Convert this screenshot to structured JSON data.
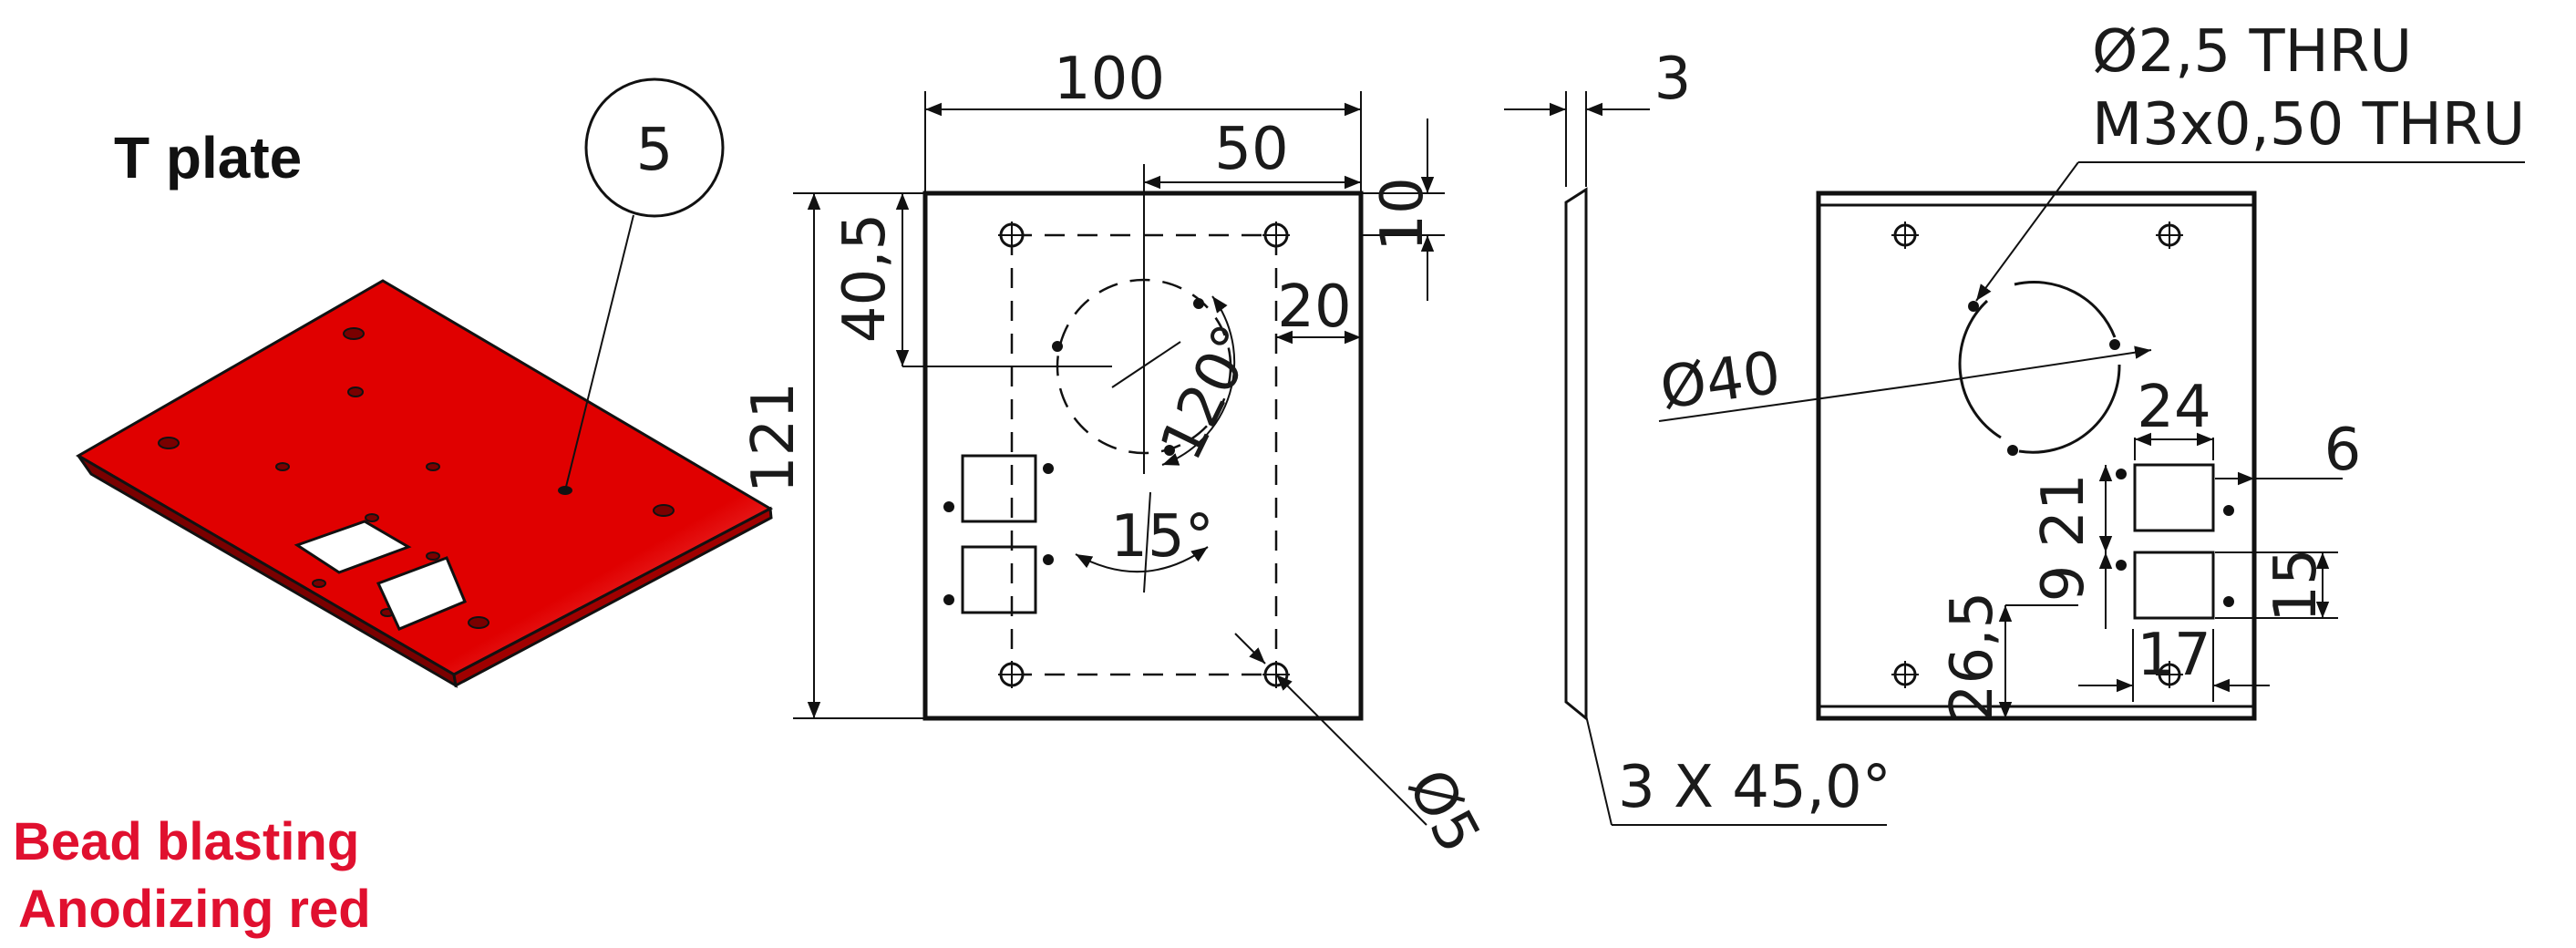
{
  "title": "T plate",
  "balloon": "5",
  "notes": {
    "line1": "Bead blasting",
    "line2": "Anodizing red"
  },
  "front_view": {
    "width": "100",
    "half_width": "50",
    "height": "121",
    "top_offset": "10",
    "center_offset": "40,5",
    "right_offset": "20",
    "angle_a": "120°",
    "angle_b": "15°",
    "hole_dia": "Ø5"
  },
  "side_view": {
    "thickness": "3",
    "chamfer": "3 X 45,0°"
  },
  "right_view": {
    "hole_note_1": "Ø2,5 THRU",
    "hole_note_2": "M3x0,50 THRU",
    "circle_dia": "Ø40",
    "cutout_width": "24",
    "side_offset": "6",
    "cutout_height": "21",
    "gap": "9",
    "spacing": "15",
    "bottom_offset": "26,5",
    "pitch": "17"
  },
  "colors": {
    "plate_red": "#e00000",
    "note_red": "#e0102f",
    "line": "#111111"
  }
}
